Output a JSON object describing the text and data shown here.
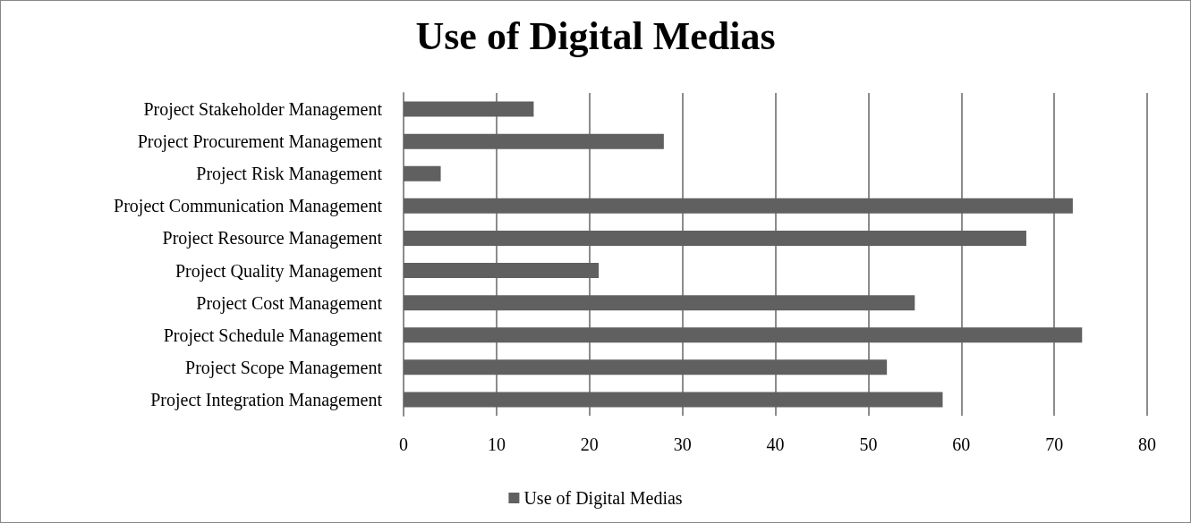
{
  "chart_data": {
    "type": "bar",
    "orientation": "horizontal",
    "title": "Use of Digital Medias",
    "categories": [
      "Project Stakeholder Management",
      "Project Procurement Management",
      "Project Risk Management",
      "Project Communication Management",
      "Project Resource Management",
      "Project Quality Management",
      "Project Cost Management",
      "Project Schedule Management",
      "Project Scope Management",
      "Project Integration Management"
    ],
    "series": [
      {
        "name": "Use of Digital Medias",
        "color": "#606060",
        "values": [
          14,
          28,
          4,
          72,
          67,
          21,
          55,
          73,
          52,
          58
        ]
      }
    ],
    "xlim": [
      0,
      80
    ],
    "xticks": [
      0,
      10,
      20,
      30,
      40,
      50,
      60,
      70,
      80
    ],
    "grid": "x",
    "legend": "bottom"
  }
}
